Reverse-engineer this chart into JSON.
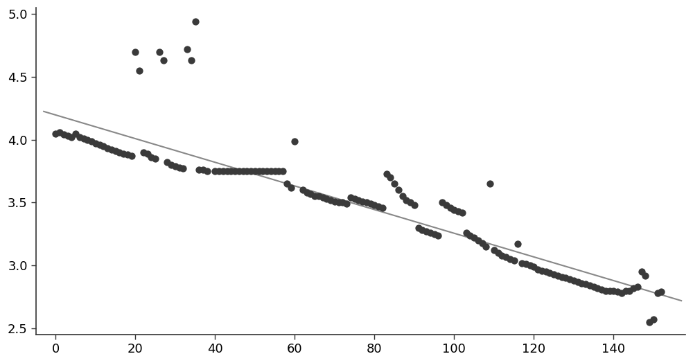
{
  "scatter_points": [
    [
      0,
      4.05
    ],
    [
      1,
      4.06
    ],
    [
      2,
      4.04
    ],
    [
      3,
      4.03
    ],
    [
      4,
      4.02
    ],
    [
      5,
      4.05
    ],
    [
      6,
      4.02
    ],
    [
      7,
      4.01
    ],
    [
      8,
      4.0
    ],
    [
      9,
      3.99
    ],
    [
      10,
      3.97
    ],
    [
      11,
      3.96
    ],
    [
      12,
      3.95
    ],
    [
      13,
      3.93
    ],
    [
      14,
      3.92
    ],
    [
      15,
      3.91
    ],
    [
      16,
      3.9
    ],
    [
      17,
      3.89
    ],
    [
      18,
      3.88
    ],
    [
      19,
      3.87
    ],
    [
      20,
      4.7
    ],
    [
      21,
      4.55
    ],
    [
      22,
      3.9
    ],
    [
      23,
      3.89
    ],
    [
      24,
      3.86
    ],
    [
      25,
      3.85
    ],
    [
      26,
      4.7
    ],
    [
      27,
      4.63
    ],
    [
      28,
      3.82
    ],
    [
      29,
      3.8
    ],
    [
      30,
      3.79
    ],
    [
      31,
      3.78
    ],
    [
      32,
      3.77
    ],
    [
      33,
      4.72
    ],
    [
      34,
      4.63
    ],
    [
      35,
      4.94
    ],
    [
      36,
      3.76
    ],
    [
      37,
      3.76
    ],
    [
      38,
      3.75
    ],
    [
      40,
      3.75
    ],
    [
      41,
      3.75
    ],
    [
      42,
      3.75
    ],
    [
      43,
      3.75
    ],
    [
      44,
      3.75
    ],
    [
      45,
      3.75
    ],
    [
      46,
      3.75
    ],
    [
      47,
      3.75
    ],
    [
      48,
      3.75
    ],
    [
      49,
      3.75
    ],
    [
      50,
      3.75
    ],
    [
      51,
      3.75
    ],
    [
      52,
      3.75
    ],
    [
      53,
      3.75
    ],
    [
      54,
      3.75
    ],
    [
      55,
      3.75
    ],
    [
      56,
      3.75
    ],
    [
      57,
      3.75
    ],
    [
      58,
      3.65
    ],
    [
      59,
      3.62
    ],
    [
      60,
      3.99
    ],
    [
      62,
      3.6
    ],
    [
      63,
      3.58
    ],
    [
      64,
      3.57
    ],
    [
      65,
      3.55
    ],
    [
      66,
      3.55
    ],
    [
      67,
      3.54
    ],
    [
      68,
      3.53
    ],
    [
      69,
      3.52
    ],
    [
      70,
      3.51
    ],
    [
      71,
      3.5
    ],
    [
      72,
      3.5
    ],
    [
      73,
      3.49
    ],
    [
      74,
      3.54
    ],
    [
      75,
      3.53
    ],
    [
      76,
      3.52
    ],
    [
      77,
      3.51
    ],
    [
      78,
      3.5
    ],
    [
      79,
      3.49
    ],
    [
      80,
      3.48
    ],
    [
      81,
      3.47
    ],
    [
      82,
      3.46
    ],
    [
      83,
      3.73
    ],
    [
      84,
      3.7
    ],
    [
      85,
      3.65
    ],
    [
      86,
      3.6
    ],
    [
      87,
      3.55
    ],
    [
      88,
      3.52
    ],
    [
      89,
      3.5
    ],
    [
      90,
      3.48
    ],
    [
      91,
      3.3
    ],
    [
      92,
      3.28
    ],
    [
      93,
      3.27
    ],
    [
      94,
      3.26
    ],
    [
      95,
      3.25
    ],
    [
      96,
      3.24
    ],
    [
      97,
      3.5
    ],
    [
      98,
      3.48
    ],
    [
      99,
      3.46
    ],
    [
      100,
      3.44
    ],
    [
      101,
      3.43
    ],
    [
      102,
      3.42
    ],
    [
      103,
      3.26
    ],
    [
      104,
      3.24
    ],
    [
      105,
      3.22
    ],
    [
      106,
      3.2
    ],
    [
      107,
      3.18
    ],
    [
      108,
      3.15
    ],
    [
      109,
      3.65
    ],
    [
      110,
      3.12
    ],
    [
      111,
      3.1
    ],
    [
      112,
      3.08
    ],
    [
      113,
      3.07
    ],
    [
      114,
      3.05
    ],
    [
      115,
      3.04
    ],
    [
      116,
      3.17
    ],
    [
      117,
      3.02
    ],
    [
      118,
      3.01
    ],
    [
      119,
      3.0
    ],
    [
      120,
      2.99
    ],
    [
      121,
      2.97
    ],
    [
      122,
      2.96
    ],
    [
      123,
      2.95
    ],
    [
      124,
      2.94
    ],
    [
      125,
      2.93
    ],
    [
      126,
      2.92
    ],
    [
      127,
      2.91
    ],
    [
      128,
      2.9
    ],
    [
      129,
      2.89
    ],
    [
      130,
      2.88
    ],
    [
      131,
      2.87
    ],
    [
      132,
      2.86
    ],
    [
      133,
      2.85
    ],
    [
      134,
      2.84
    ],
    [
      135,
      2.83
    ],
    [
      136,
      2.82
    ],
    [
      137,
      2.81
    ],
    [
      138,
      2.8
    ],
    [
      139,
      2.8
    ],
    [
      140,
      2.8
    ],
    [
      141,
      2.79
    ],
    [
      142,
      2.78
    ],
    [
      143,
      2.8
    ],
    [
      144,
      2.8
    ],
    [
      145,
      2.82
    ],
    [
      146,
      2.83
    ],
    [
      147,
      2.95
    ],
    [
      148,
      2.92
    ],
    [
      149,
      2.55
    ],
    [
      150,
      2.57
    ],
    [
      151,
      2.78
    ],
    [
      152,
      2.79
    ]
  ],
  "line_x": [
    -3,
    157
  ],
  "line_y": [
    4.225,
    2.72
  ],
  "dot_color": "#3a3a3a",
  "line_color": "#888888",
  "dot_size": 55,
  "xlim": [
    -5,
    158
  ],
  "ylim": [
    2.45,
    5.05
  ],
  "yticks": [
    2.5,
    3.0,
    3.5,
    4.0,
    4.5,
    5.0
  ],
  "xticks": [
    0,
    20,
    40,
    60,
    80,
    100,
    120,
    140
  ],
  "background_color": "#ffffff",
  "figure_bg": "#ffffff",
  "spine_color": "#333333",
  "tick_color": "#333333"
}
